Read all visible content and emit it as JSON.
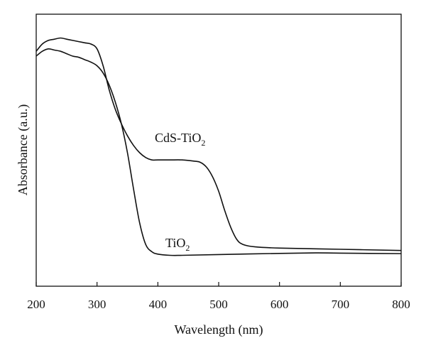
{
  "chart_data": {
    "type": "line",
    "xlabel": "Wavelength (nm)",
    "ylabel": "Absorbance (a.u.)",
    "xlim": [
      200,
      800
    ],
    "ylim": [
      0,
      1
    ],
    "y_ticks_labeled": false,
    "xticks": [
      "200",
      "300",
      "400",
      "500",
      "600",
      "700",
      "800"
    ],
    "series": [
      {
        "name": "CdS-TiO2",
        "label_main": "CdS-TiO",
        "label_sub": "2",
        "x": [
          200,
          210,
          220,
          230,
          240,
          250,
          260,
          270,
          280,
          290,
          300,
          310,
          320,
          330,
          340,
          350,
          360,
          370,
          380,
          390,
          400,
          420,
          440,
          460,
          470,
          480,
          490,
          500,
          510,
          520,
          530,
          540,
          560,
          600,
          700,
          800
        ],
        "y": [
          0.92,
          0.95,
          0.965,
          0.97,
          0.975,
          0.97,
          0.965,
          0.96,
          0.955,
          0.95,
          0.93,
          0.86,
          0.76,
          0.68,
          0.62,
          0.57,
          0.53,
          0.5,
          0.48,
          0.47,
          0.47,
          0.47,
          0.47,
          0.465,
          0.46,
          0.44,
          0.4,
          0.34,
          0.26,
          0.19,
          0.14,
          0.12,
          0.11,
          0.105,
          0.1,
          0.095
        ]
      },
      {
        "name": "TiO2",
        "label_main": "TiO",
        "label_sub": "2",
        "x": [
          200,
          210,
          220,
          230,
          240,
          250,
          260,
          270,
          280,
          290,
          300,
          310,
          320,
          330,
          340,
          350,
          360,
          370,
          380,
          390,
          400,
          420,
          440,
          500,
          600,
          660,
          700,
          800
        ],
        "y": [
          0.9,
          0.92,
          0.93,
          0.925,
          0.92,
          0.91,
          0.9,
          0.895,
          0.885,
          0.875,
          0.86,
          0.83,
          0.78,
          0.71,
          0.62,
          0.5,
          0.35,
          0.21,
          0.12,
          0.09,
          0.08,
          0.075,
          0.075,
          0.078,
          0.083,
          0.085,
          0.084,
          0.082
        ]
      }
    ]
  }
}
